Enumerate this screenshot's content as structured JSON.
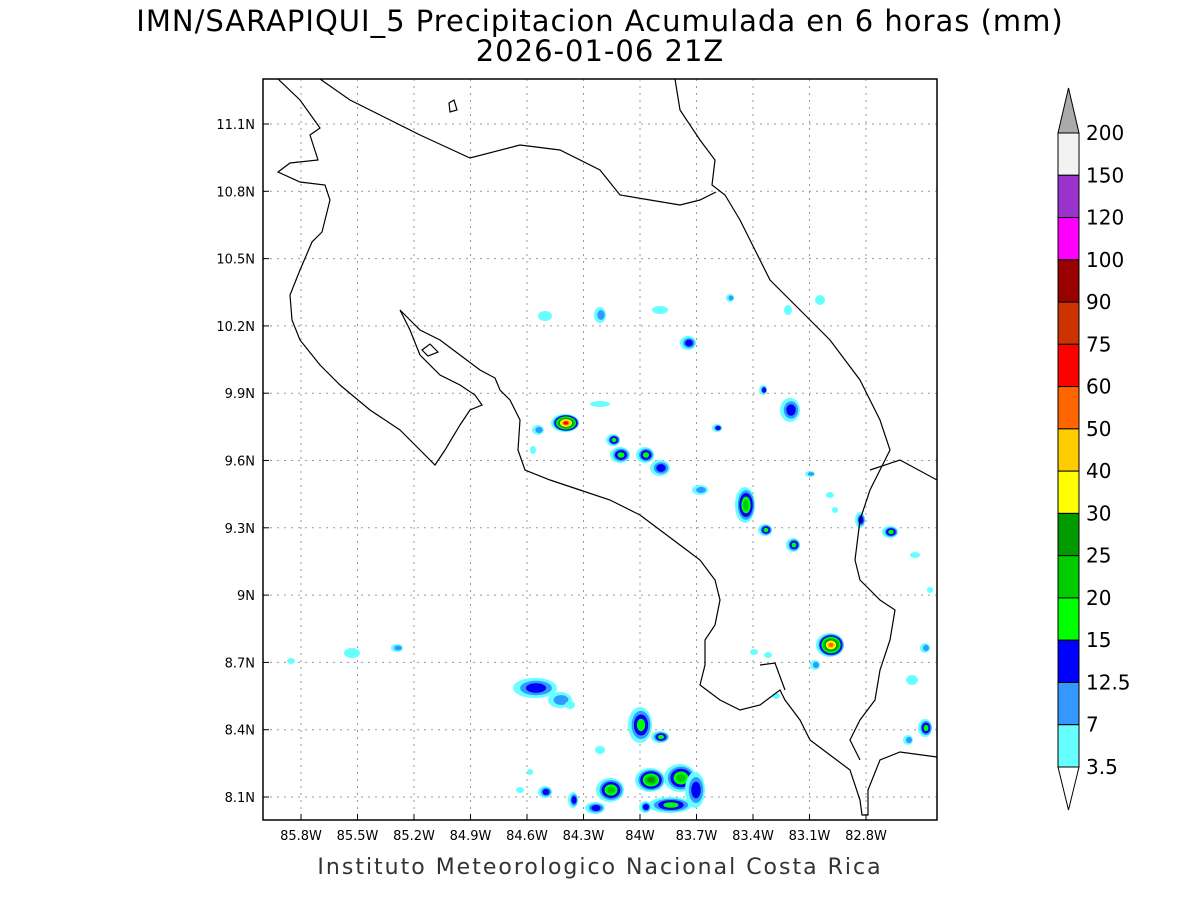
{
  "title": "IMN/SARAPIQUI_5 Precipitacion Acumulada en 6 horas (mm)",
  "subtitle": "2026-01-06 21Z",
  "footer": "Instituto Meteorologico Nacional Costa Rica",
  "map": {
    "lat_ticks": [
      "11.1N",
      "10.8N",
      "10.5N",
      "10.2N",
      "9.9N",
      "9.6N",
      "9.3N",
      "9N",
      "8.7N",
      "8.4N",
      "8.1N"
    ],
    "lon_ticks": [
      "85.8W",
      "85.5W",
      "85.2W",
      "84.9W",
      "84.6W",
      "84.3W",
      "84W",
      "83.7W",
      "83.4W",
      "83.1W",
      "82.8W"
    ],
    "lat_range": [
      8.0,
      11.3
    ],
    "lon_range": [
      -85.97,
      -82.4
    ]
  },
  "colorbar": {
    "labels": [
      "200",
      "150",
      "120",
      "100",
      "90",
      "75",
      "60",
      "50",
      "40",
      "30",
      "25",
      "20",
      "15",
      "12.5",
      "7",
      "3.5"
    ],
    "colors": [
      "#f2f2f2",
      "#9933cc",
      "#ff00ff",
      "#990000",
      "#cc3300",
      "#ff0000",
      "#ff6600",
      "#ffcc00",
      "#ffff00",
      "#009900",
      "#00cc00",
      "#00ff00",
      "#0000ff",
      "#3399ff",
      "#66ffff"
    ],
    "over_color": "#aaaaaa",
    "under_color": "#ffffff"
  }
}
